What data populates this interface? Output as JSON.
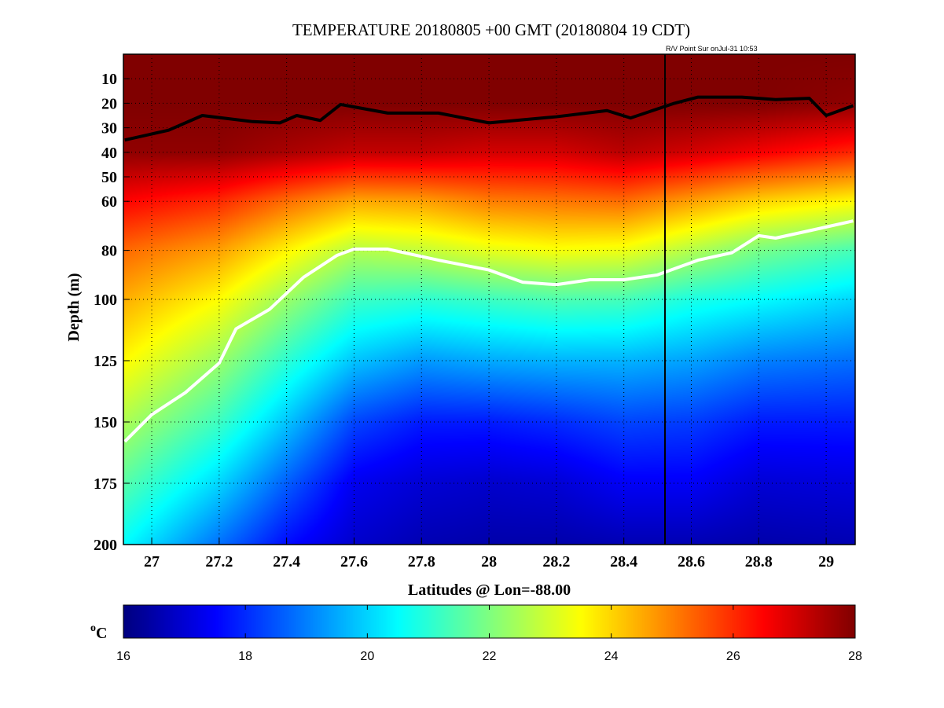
{
  "chart_data": {
    "type": "heatmap",
    "title": "TEMPERATURE 20180805 +00 GMT (20180804 19 CDT)",
    "annotation": "R/V Point Sur onJul-31 10:53",
    "xlabel": "Latitudes @ Lon=-88.00",
    "ylabel": "Depth (m)",
    "xlim": [
      26.916,
      29.086
    ],
    "ylim": [
      0,
      200
    ],
    "xticks": [
      27,
      27.2,
      27.4,
      27.6,
      27.8,
      28,
      28.2,
      28.4,
      28.6,
      28.8,
      29
    ],
    "xtick_labels": [
      "27",
      "27.2",
      "27.4",
      "27.6",
      "27.8",
      "28",
      "28.2",
      "28.4",
      "28.6",
      "28.8",
      "29"
    ],
    "yticks": [
      10,
      20,
      30,
      40,
      50,
      60,
      80,
      100,
      125,
      150,
      175,
      200
    ],
    "ytick_labels": [
      "10",
      "20",
      "30",
      "40",
      "50",
      "60",
      "80",
      "100",
      "125",
      "150",
      "175",
      "200"
    ],
    "grid": true,
    "colorbar": {
      "label": "oC",
      "range": [
        16,
        28
      ],
      "ticks": [
        "16",
        "18",
        "20",
        "22",
        "24",
        "26",
        "28"
      ],
      "colormap": "jet"
    },
    "grid_lats": [
      26.9,
      27.2,
      27.4,
      27.6,
      27.8,
      28.0,
      28.2,
      28.4,
      28.6,
      28.8,
      29.1
    ],
    "grid_depths": [
      0,
      20,
      40,
      60,
      80,
      100,
      125,
      150,
      175,
      200
    ],
    "temperature": [
      [
        28,
        28,
        27.8,
        26.5,
        25.3,
        24.5,
        23.6,
        22.6,
        21.6,
        20.6
      ],
      [
        28,
        28,
        27.8,
        26.0,
        24.6,
        23.5,
        22.3,
        21.2,
        20.0,
        18.8
      ],
      [
        28,
        28,
        27.5,
        25.2,
        23.6,
        22.3,
        21.0,
        19.8,
        18.6,
        17.6
      ],
      [
        28,
        28,
        27.2,
        24.5,
        22.6,
        21.2,
        19.8,
        18.3,
        17.3,
        16.9
      ],
      [
        28,
        28,
        27.2,
        24.6,
        22.8,
        21.0,
        19.3,
        17.8,
        17.0,
        16.6
      ],
      [
        28,
        28,
        27.0,
        25.0,
        23.2,
        21.2,
        19.5,
        17.8,
        16.9,
        16.5
      ],
      [
        28,
        28,
        27.0,
        25.1,
        23.4,
        21.4,
        19.6,
        18.0,
        17.0,
        16.5
      ],
      [
        28,
        28,
        27.3,
        25.2,
        23.3,
        21.3,
        19.6,
        18.3,
        17.4,
        16.6
      ],
      [
        28,
        28,
        27.0,
        24.6,
        22.6,
        20.8,
        19.4,
        18.2,
        17.4,
        16.6
      ],
      [
        28,
        28,
        26.6,
        24.0,
        21.9,
        20.5,
        19.0,
        17.8,
        17.0,
        16.5
      ],
      [
        28,
        27.8,
        26.0,
        23.5,
        21.3,
        20.0,
        18.8,
        17.8,
        17.1,
        16.6
      ]
    ],
    "series": [
      {
        "name": "upper contour",
        "color": "#000000",
        "points": [
          [
            26.92,
            35
          ],
          [
            27.05,
            31
          ],
          [
            27.15,
            25
          ],
          [
            27.3,
            27.5
          ],
          [
            27.38,
            28
          ],
          [
            27.43,
            25
          ],
          [
            27.5,
            27
          ],
          [
            27.56,
            20.5
          ],
          [
            27.7,
            24
          ],
          [
            27.85,
            24
          ],
          [
            28.0,
            28
          ],
          [
            28.2,
            25.5
          ],
          [
            28.35,
            23
          ],
          [
            28.42,
            26
          ],
          [
            28.55,
            20
          ],
          [
            28.62,
            17.5
          ],
          [
            28.75,
            17.5
          ],
          [
            28.85,
            18.5
          ],
          [
            28.95,
            18
          ],
          [
            29.0,
            25
          ],
          [
            29.08,
            21
          ]
        ]
      },
      {
        "name": "lower contour",
        "color": "#ffffff",
        "points": [
          [
            26.92,
            158
          ],
          [
            27.0,
            147
          ],
          [
            27.1,
            138
          ],
          [
            27.2,
            126
          ],
          [
            27.25,
            112
          ],
          [
            27.35,
            104
          ],
          [
            27.45,
            91
          ],
          [
            27.55,
            82
          ],
          [
            27.6,
            79.5
          ],
          [
            27.7,
            79.5
          ],
          [
            27.85,
            84
          ],
          [
            28.0,
            88
          ],
          [
            28.1,
            93
          ],
          [
            28.2,
            94
          ],
          [
            28.3,
            92
          ],
          [
            28.4,
            92
          ],
          [
            28.5,
            90
          ],
          [
            28.62,
            84
          ],
          [
            28.72,
            81
          ],
          [
            28.8,
            74
          ],
          [
            28.85,
            75
          ],
          [
            28.95,
            72
          ],
          [
            29.08,
            68
          ]
        ]
      }
    ],
    "vertical_marker_lat": 28.522
  }
}
